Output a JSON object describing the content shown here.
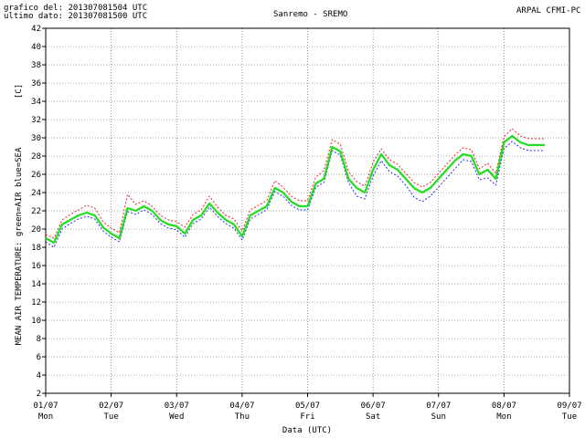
{
  "header": {
    "line1": "grafico del: 201307081504 UTC",
    "line2": "ultimo dato: 201307081500 UTC",
    "station": "Sanremo - SREMO",
    "org": "ARPAL CFMI-PC"
  },
  "colors": {
    "air": "#22dd22",
    "sea": "#2233ee",
    "max": "#ee2222",
    "grid": "#555555"
  },
  "chart_data": {
    "type": "line",
    "title": "Sanremo - SREMO",
    "xlabel": "Data (UTC)",
    "ylabel": "MEAN AIR TEMPERATURE: green=AIR blue=SEA",
    "yunit": "[C]",
    "ylim": [
      2,
      42
    ],
    "yticks": [
      2,
      4,
      6,
      8,
      10,
      12,
      14,
      16,
      18,
      20,
      22,
      24,
      26,
      28,
      30,
      32,
      34,
      36,
      38,
      40,
      42
    ],
    "xlim": [
      "2013-07-01",
      "2013-07-09"
    ],
    "xticks": [
      {
        "date": "01/07",
        "day": "Mon"
      },
      {
        "date": "02/07",
        "day": "Tue"
      },
      {
        "date": "03/07",
        "day": "Wed"
      },
      {
        "date": "04/07",
        "day": "Thu"
      },
      {
        "date": "05/07",
        "day": "Fri"
      },
      {
        "date": "06/07",
        "day": "Sat"
      },
      {
        "date": "07/07",
        "day": "Sun"
      },
      {
        "date": "08/07",
        "day": "Mon"
      },
      {
        "date": "09/07",
        "day": "Tue"
      }
    ],
    "grid": true,
    "x_dates": [
      "2013-07-01 00:00",
      "2013-07-01 03:00",
      "2013-07-01 06:00",
      "2013-07-01 09:00",
      "2013-07-01 12:00",
      "2013-07-01 15:00",
      "2013-07-01 18:00",
      "2013-07-01 21:00",
      "2013-07-02 00:00",
      "2013-07-02 03:00",
      "2013-07-02 06:00",
      "2013-07-02 09:00",
      "2013-07-02 12:00",
      "2013-07-02 15:00",
      "2013-07-02 18:00",
      "2013-07-02 21:00",
      "2013-07-03 00:00",
      "2013-07-03 03:00",
      "2013-07-03 06:00",
      "2013-07-03 09:00",
      "2013-07-03 12:00",
      "2013-07-03 15:00",
      "2013-07-03 18:00",
      "2013-07-03 21:00",
      "2013-07-04 00:00",
      "2013-07-04 03:00",
      "2013-07-04 06:00",
      "2013-07-04 09:00",
      "2013-07-04 12:00",
      "2013-07-04 15:00",
      "2013-07-04 18:00",
      "2013-07-04 21:00",
      "2013-07-05 00:00",
      "2013-07-05 03:00",
      "2013-07-05 06:00",
      "2013-07-05 09:00",
      "2013-07-05 12:00",
      "2013-07-05 15:00",
      "2013-07-05 18:00",
      "2013-07-05 21:00",
      "2013-07-06 00:00",
      "2013-07-06 03:00",
      "2013-07-06 06:00",
      "2013-07-06 09:00",
      "2013-07-06 12:00",
      "2013-07-06 15:00",
      "2013-07-06 18:00",
      "2013-07-06 21:00",
      "2013-07-07 00:00",
      "2013-07-07 03:00",
      "2013-07-07 06:00",
      "2013-07-07 09:00",
      "2013-07-07 12:00",
      "2013-07-07 15:00",
      "2013-07-07 18:00",
      "2013-07-07 21:00",
      "2013-07-08 00:00",
      "2013-07-08 03:00",
      "2013-07-08 06:00",
      "2013-07-08 09:00",
      "2013-07-08 12:00",
      "2013-07-08 15:00"
    ],
    "series": [
      {
        "key": "air",
        "values": [
          19.0,
          18.5,
          20.5,
          21.0,
          21.5,
          21.8,
          21.5,
          20.2,
          19.5,
          19.0,
          22.3,
          22.0,
          22.5,
          22.0,
          21.0,
          20.5,
          20.3,
          19.5,
          21.0,
          21.5,
          22.8,
          21.8,
          21.0,
          20.5,
          19.2,
          21.5,
          22.0,
          22.5,
          24.5,
          24.0,
          23.0,
          22.5,
          22.5,
          25.0,
          25.5,
          29.0,
          28.5,
          25.5,
          24.5,
          24.0,
          26.5,
          28.2,
          27.0,
          26.5,
          25.5,
          24.5,
          24.0,
          24.5,
          25.5,
          26.5,
          27.5,
          28.2,
          28.0,
          26.0,
          26.5,
          25.5,
          29.5,
          30.2,
          29.5,
          29.2,
          29.2,
          29.2
        ]
      },
      {
        "key": "sea",
        "values": [
          18.6,
          18.0,
          20.0,
          20.6,
          21.1,
          21.4,
          21.1,
          19.8,
          19.1,
          18.6,
          21.9,
          21.6,
          22.1,
          21.6,
          20.6,
          20.1,
          19.9,
          19.1,
          20.6,
          21.1,
          22.4,
          21.4,
          20.6,
          20.1,
          18.8,
          21.1,
          21.6,
          22.1,
          24.1,
          23.6,
          22.6,
          22.1,
          22.1,
          24.6,
          25.1,
          28.6,
          28.1,
          25.1,
          23.6,
          23.3,
          25.8,
          27.5,
          26.3,
          25.8,
          24.8,
          23.5,
          23.0,
          23.6,
          24.6,
          25.6,
          26.6,
          27.6,
          27.4,
          25.4,
          25.6,
          24.8,
          28.8,
          29.6,
          28.9,
          28.6,
          28.6,
          28.6
        ]
      },
      {
        "key": "max",
        "values": [
          19.4,
          19.0,
          21.0,
          21.6,
          22.1,
          22.6,
          22.3,
          20.8,
          20.1,
          19.6,
          23.8,
          22.7,
          23.1,
          22.5,
          21.5,
          21.0,
          20.8,
          20.2,
          21.6,
          22.1,
          23.6,
          22.4,
          21.5,
          21.1,
          19.8,
          22.1,
          22.6,
          23.1,
          25.3,
          24.6,
          23.6,
          23.1,
          23.1,
          25.7,
          26.4,
          29.8,
          29.3,
          26.3,
          25.2,
          24.7,
          27.3,
          28.8,
          27.6,
          27.1,
          26.1,
          25.1,
          24.6,
          25.1,
          26.1,
          27.1,
          28.1,
          28.9,
          28.7,
          26.6,
          27.2,
          26.1,
          30.1,
          31.0,
          30.2,
          29.9,
          29.9,
          29.9
        ]
      }
    ]
  }
}
